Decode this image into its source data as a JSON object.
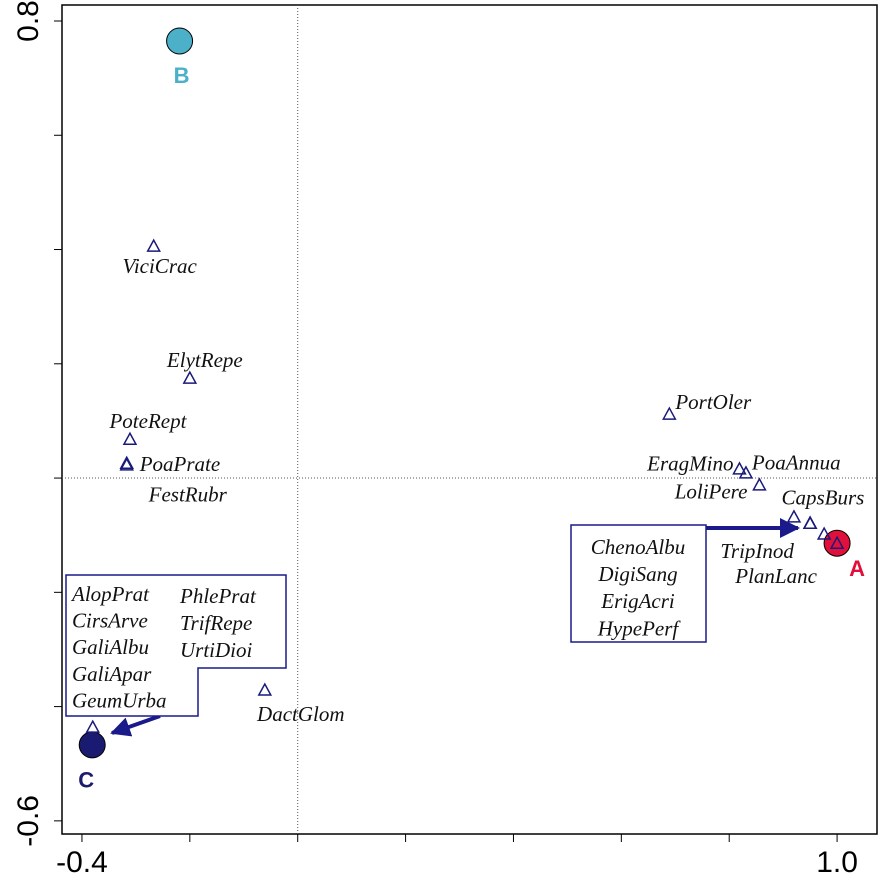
{
  "chart_data": {
    "type": "scatter",
    "xlim": [
      -0.437,
      1.074
    ],
    "ylim": [
      -0.623,
      0.828
    ],
    "xticks": [
      -0.4,
      {
        "value": 1,
        "label": "1.0"
      }
    ],
    "yticks": [
      -0.6,
      0.8
    ],
    "xminor": [
      -0.2,
      0,
      0.2,
      0.4,
      0.6,
      0.8
    ],
    "yminor": [
      -0.4,
      -0.2,
      0,
      0.2,
      0.4,
      0.6
    ],
    "zero_lines": true,
    "points": {
      "color": "#1a1a7a",
      "labels": [
        "ViciCrac",
        "ElytRepe",
        "PoteRept",
        "PoaPrate",
        "FestRubr",
        "DactGlom",
        "PortOler",
        "EragMino",
        "PoaAnnua",
        "LoliPere",
        "CapsBurs",
        "TripInod",
        "PlanLanc",
        "ChenoAlbu",
        "DigiSang",
        "ErigAcri",
        "HypePerf",
        "AlopPrat",
        "CirsArve",
        "GaliAlbu",
        "GaliApar",
        "GeumUrba",
        "PhlePrat",
        "TrifRepe",
        "UrtiDioi"
      ],
      "x": [
        -0.267,
        -0.2,
        -0.311,
        -0.317,
        -0.317,
        -0.061,
        0.689,
        0.819,
        0.831,
        0.856,
        0.92,
        0.976,
        1.0,
        0.95,
        0.95,
        0.95,
        0.95,
        -0.38,
        -0.38,
        -0.38,
        -0.38,
        -0.38,
        -0.38,
        -0.38,
        -0.38
      ],
      "y": [
        0.406,
        0.175,
        0.068,
        0.026,
        0.023,
        -0.371,
        0.112,
        0.016,
        0.009,
        -0.012,
        -0.068,
        -0.098,
        -0.114,
        -0.079,
        -0.079,
        -0.079,
        -0.079,
        -0.436,
        -0.465,
        -0.465,
        -0.465,
        -0.465,
        -0.465,
        -0.465,
        -0.465
      ]
    },
    "sites": {
      "labels": [
        "A",
        "B",
        "C"
      ],
      "x": [
        1.0,
        -0.219,
        -0.381
      ],
      "y": [
        -0.114,
        0.765,
        -0.467
      ],
      "colors": [
        "#e0103a",
        "#4bb0c8",
        "#1a1a6e"
      ]
    }
  }
}
